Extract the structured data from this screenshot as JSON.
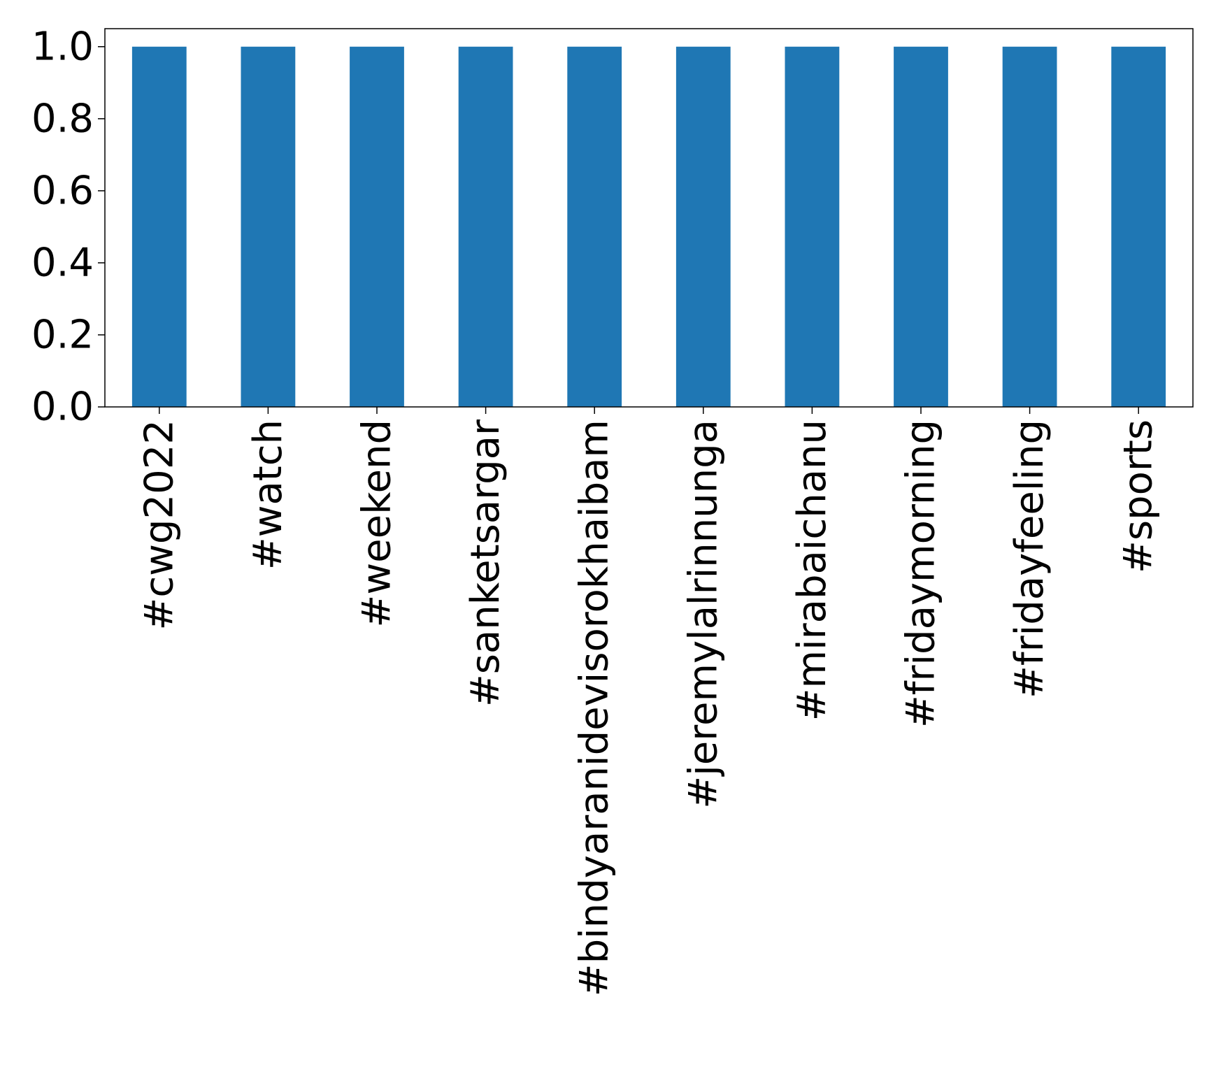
{
  "chart_data": {
    "type": "bar",
    "title": "",
    "xlabel": "",
    "ylabel": "",
    "categories": [
      "#cwg2022",
      "#watch",
      "#weekend",
      "#sanketsargar",
      "#bindyaranidevisorokhaibam",
      "#jeremylalrinnunga",
      "#mirabaichanu",
      "#fridaymorning",
      "#fridayfeeling",
      "#sports"
    ],
    "values": [
      1.0,
      1.0,
      1.0,
      1.0,
      1.0,
      1.0,
      1.0,
      1.0,
      1.0,
      1.0
    ],
    "ylim": [
      0,
      1.05
    ],
    "yticks": [
      "0.0",
      "0.2",
      "0.4",
      "0.6",
      "0.8",
      "1.0"
    ],
    "bar_color": "#1f77b4",
    "grid": false,
    "legend": "none"
  }
}
